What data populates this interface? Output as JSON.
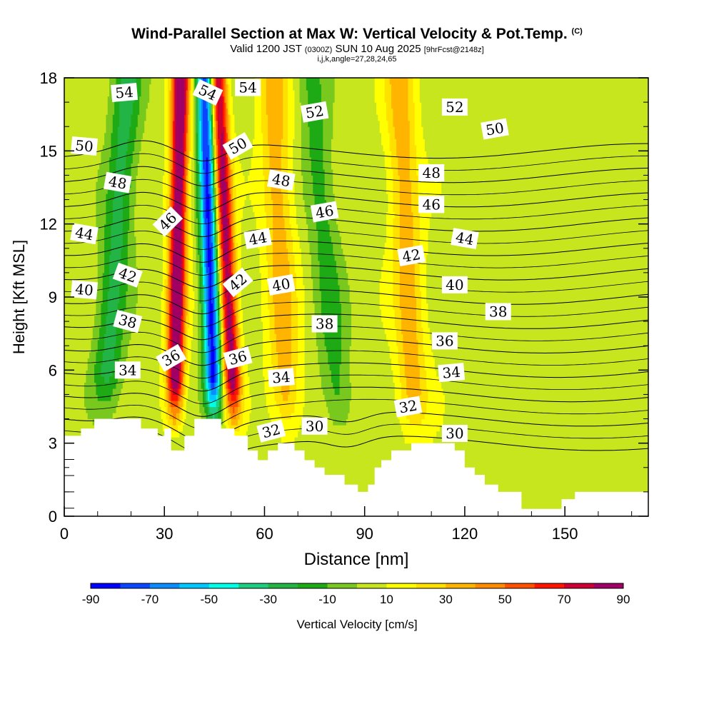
{
  "title": {
    "main": "Wind-Parallel Section at Max W: Vertical Velocity & Pot.Temp.",
    "copyright": "(C)",
    "valid_prefix": "Valid 1200 JST",
    "valid_z": "(0300Z)",
    "valid_date": "SUN 10 Aug 2025",
    "forecast": "[9hrFcst@2148z]",
    "grid": "i,j,k,angle=27,28,24,65"
  },
  "chart_data": {
    "type": "heatmap",
    "xlabel": "Distance [nm]",
    "ylabel": "Height [Kft MSL]",
    "xlim": [
      0,
      175
    ],
    "ylim": [
      0,
      18
    ],
    "x_ticks": [
      "0",
      "30",
      "60",
      "90",
      "120",
      "150"
    ],
    "x_tick_values": [
      0,
      30,
      60,
      90,
      120,
      150
    ],
    "y_ticks": [
      "0",
      "3",
      "6",
      "9",
      "12",
      "15",
      "18"
    ],
    "y_tick_values": [
      0,
      3,
      6,
      9,
      12,
      15,
      18
    ],
    "colorbar": {
      "label": "Vertical Velocity [cm/s]",
      "tick_labels": [
        "-90",
        "-70",
        "-50",
        "-30",
        "-10",
        "10",
        "30",
        "50",
        "70",
        "90"
      ],
      "tick_values": [
        -90,
        -70,
        -50,
        -30,
        -10,
        10,
        30,
        50,
        70,
        90
      ],
      "bins": [
        -90,
        -80,
        -70,
        -60,
        -50,
        -40,
        -30,
        -20,
        -10,
        0,
        10,
        20,
        30,
        40,
        50,
        60,
        70,
        80,
        90
      ],
      "colors": [
        "#0000ff",
        "#0a46ff",
        "#0a8cff",
        "#00c8ff",
        "#00ffe6",
        "#1ecd7d",
        "#23b446",
        "#1eaa14",
        "#78c81e",
        "#c8e61e",
        "#ffff00",
        "#ffe100",
        "#ffb400",
        "#ff8c00",
        "#ff5000",
        "#ff1400",
        "#cd0032",
        "#a00064",
        "#64008c"
      ]
    },
    "terrain": [
      [
        0,
        3.3
      ],
      [
        5,
        3.3
      ],
      [
        5,
        3.6
      ],
      [
        9,
        3.6
      ],
      [
        9,
        4.0
      ],
      [
        23,
        4.0
      ],
      [
        23,
        3.6
      ],
      [
        28,
        3.6
      ],
      [
        28,
        3.3
      ],
      [
        30,
        3.3
      ],
      [
        30,
        3.6
      ],
      [
        32,
        3.6
      ],
      [
        32,
        2.7
      ],
      [
        36,
        2.7
      ],
      [
        36,
        3.3
      ],
      [
        39,
        3.3
      ],
      [
        39,
        4.0
      ],
      [
        47,
        4.0
      ],
      [
        47,
        3.6
      ],
      [
        51,
        3.6
      ],
      [
        51,
        3.3
      ],
      [
        55,
        3.3
      ],
      [
        55,
        2.7
      ],
      [
        58,
        2.7
      ],
      [
        58,
        2.3
      ],
      [
        61,
        2.3
      ],
      [
        61,
        2.7
      ],
      [
        64,
        2.7
      ],
      [
        64,
        3.0
      ],
      [
        69,
        3.0
      ],
      [
        69,
        2.7
      ],
      [
        72,
        2.7
      ],
      [
        72,
        2.3
      ],
      [
        75,
        2.3
      ],
      [
        75,
        2.0
      ],
      [
        78,
        2.0
      ],
      [
        78,
        1.7
      ],
      [
        84,
        1.7
      ],
      [
        84,
        1.3
      ],
      [
        88,
        1.3
      ],
      [
        88,
        1.0
      ],
      [
        91,
        1.0
      ],
      [
        91,
        1.3
      ],
      [
        93,
        1.3
      ],
      [
        93,
        2.0
      ],
      [
        95,
        2.0
      ],
      [
        95,
        2.3
      ],
      [
        98,
        2.3
      ],
      [
        98,
        2.7
      ],
      [
        104,
        2.7
      ],
      [
        104,
        3.0
      ],
      [
        117,
        3.0
      ],
      [
        117,
        2.7
      ],
      [
        120,
        2.7
      ],
      [
        120,
        2.0
      ],
      [
        123,
        2.0
      ],
      [
        123,
        1.7
      ],
      [
        126,
        1.7
      ],
      [
        126,
        1.3
      ],
      [
        130,
        1.3
      ],
      [
        130,
        1.0
      ],
      [
        137,
        1.0
      ],
      [
        137,
        0.3
      ],
      [
        149,
        0.3
      ],
      [
        149,
        0.7
      ],
      [
        153,
        0.7
      ],
      [
        153,
        1.0
      ],
      [
        175,
        1.0
      ]
    ],
    "velocity_features": [
      {
        "name": "updraft-west",
        "x": 33,
        "y0": 3.6,
        "y1": 18,
        "drift": 0.13,
        "value": 90
      },
      {
        "name": "downdraft-core",
        "x": 45,
        "y0": 3.6,
        "y1": 18,
        "drift": -0.2,
        "value": -90
      },
      {
        "name": "updraft-east",
        "x": 51,
        "y0": 3.6,
        "y1": 18,
        "drift": -0.35,
        "value": 80
      },
      {
        "name": "downdraft-west-band",
        "x": 12,
        "y0": 4,
        "y1": 18,
        "drift": 0.5,
        "value": -30
      },
      {
        "name": "downdraft-mid-band",
        "x": 83,
        "y0": 3,
        "y1": 18,
        "drift": -0.6,
        "value": -20
      },
      {
        "name": "updraft-mid-band",
        "x": 67,
        "y0": 3,
        "y1": 18,
        "drift": -0.3,
        "value": 30
      },
      {
        "name": "updraft-east-band",
        "x": 105,
        "y0": 3,
        "y1": 18,
        "drift": -0.3,
        "value": 30
      }
    ],
    "contour_levels": [
      30,
      32,
      34,
      36,
      38,
      40,
      42,
      44,
      46,
      48,
      50,
      52,
      54
    ],
    "contour_labels": [
      {
        "text": "54",
        "x": 18,
        "y": 17.4,
        "rot": -5
      },
      {
        "text": "54",
        "x": 43,
        "y": 17.4,
        "rot": 25
      },
      {
        "text": "54",
        "x": 55,
        "y": 17.6,
        "rot": 0
      },
      {
        "text": "52",
        "x": 75,
        "y": 16.6,
        "rot": -10
      },
      {
        "text": "52",
        "x": 117,
        "y": 16.8,
        "rot": 0
      },
      {
        "text": "50",
        "x": 6,
        "y": 15.2,
        "rot": 5
      },
      {
        "text": "50",
        "x": 52,
        "y": 15.2,
        "rot": -30
      },
      {
        "text": "50",
        "x": 129,
        "y": 15.9,
        "rot": -10
      },
      {
        "text": "48",
        "x": 16,
        "y": 13.7,
        "rot": 10
      },
      {
        "text": "48",
        "x": 65,
        "y": 13.8,
        "rot": 10
      },
      {
        "text": "48",
        "x": 110,
        "y": 14.1,
        "rot": 0
      },
      {
        "text": "46",
        "x": 31,
        "y": 12.1,
        "rot": -45
      },
      {
        "text": "46",
        "x": 78,
        "y": 12.5,
        "rot": -10
      },
      {
        "text": "46",
        "x": 110,
        "y": 12.8,
        "rot": 0
      },
      {
        "text": "44",
        "x": 6,
        "y": 11.6,
        "rot": 10
      },
      {
        "text": "44",
        "x": 58,
        "y": 11.4,
        "rot": -10
      },
      {
        "text": "44",
        "x": 120,
        "y": 11.4,
        "rot": 10
      },
      {
        "text": "42",
        "x": 19,
        "y": 9.9,
        "rot": 20
      },
      {
        "text": "42",
        "x": 52,
        "y": 9.6,
        "rot": -40
      },
      {
        "text": "42",
        "x": 104,
        "y": 10.7,
        "rot": -10
      },
      {
        "text": "40",
        "x": 6,
        "y": 9.3,
        "rot": 5
      },
      {
        "text": "40",
        "x": 65,
        "y": 9.5,
        "rot": -10
      },
      {
        "text": "40",
        "x": 117,
        "y": 9.5,
        "rot": 0
      },
      {
        "text": "38",
        "x": 19,
        "y": 8.0,
        "rot": 15
      },
      {
        "text": "38",
        "x": 78,
        "y": 7.9,
        "rot": 0
      },
      {
        "text": "38",
        "x": 130,
        "y": 8.4,
        "rot": 0
      },
      {
        "text": "36",
        "x": 32,
        "y": 6.5,
        "rot": -30
      },
      {
        "text": "36",
        "x": 52,
        "y": 6.5,
        "rot": -15
      },
      {
        "text": "36",
        "x": 114,
        "y": 7.2,
        "rot": 0
      },
      {
        "text": "34",
        "x": 19,
        "y": 6.0,
        "rot": 0
      },
      {
        "text": "34",
        "x": 65,
        "y": 5.7,
        "rot": -5
      },
      {
        "text": "34",
        "x": 116,
        "y": 5.9,
        "rot": -5
      },
      {
        "text": "32",
        "x": 62,
        "y": 3.5,
        "rot": -15
      },
      {
        "text": "32",
        "x": 103,
        "y": 4.5,
        "rot": -10
      },
      {
        "text": "30",
        "x": 75,
        "y": 3.7,
        "rot": 0
      },
      {
        "text": "30",
        "x": 117,
        "y": 3.4,
        "rot": 0
      }
    ]
  }
}
